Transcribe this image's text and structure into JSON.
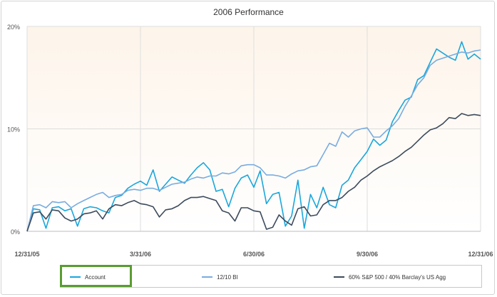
{
  "chart_data": {
    "type": "line",
    "title": "2006 Performance",
    "xlabel": "",
    "ylabel": "",
    "x_ticks": [
      "12/31/05",
      "3/31/06",
      "6/30/06",
      "9/30/06",
      "12/31/06"
    ],
    "y_ticks": [
      "0%",
      "10%",
      "20%"
    ],
    "ylim": [
      0,
      20
    ],
    "grid": true,
    "legend_position": "bottom",
    "series": [
      {
        "name": "Account",
        "color": "#1aa7dc",
        "values": [
          0.0,
          2.2,
          2.1,
          0.3,
          2.3,
          2.4,
          2.0,
          2.2,
          0.5,
          2.2,
          2.4,
          2.3,
          2.0,
          1.8,
          3.3,
          3.5,
          4.2,
          4.6,
          4.9,
          4.5,
          6.0,
          3.9,
          4.6,
          5.3,
          5.0,
          4.7,
          5.5,
          6.2,
          6.7,
          6.0,
          3.9,
          4.1,
          2.4,
          4.2,
          5.2,
          5.5,
          4.3,
          5.9,
          2.7,
          3.6,
          3.8,
          0.5,
          1.5,
          5.0,
          0.3,
          3.6,
          2.3,
          4.3,
          2.6,
          2.3,
          4.5,
          5.0,
          6.2,
          7.0,
          7.8,
          9.0,
          8.4,
          8.9,
          10.7,
          11.8,
          12.8,
          13.1,
          14.8,
          15.2,
          16.5,
          17.8,
          17.4,
          17.0,
          16.7,
          18.5,
          16.8,
          17.3,
          16.8
        ]
      },
      {
        "name": "12/10 BI",
        "color": "#79ace0",
        "values": [
          0.0,
          2.5,
          2.6,
          2.3,
          2.9,
          2.8,
          2.9,
          2.3,
          2.7,
          3.0,
          3.3,
          3.6,
          3.8,
          3.3,
          3.5,
          3.6,
          4.0,
          4.1,
          4.0,
          4.2,
          4.2,
          4.0,
          4.3,
          4.6,
          4.7,
          4.8,
          5.1,
          5.3,
          5.2,
          5.4,
          5.4,
          5.7,
          5.6,
          5.8,
          6.4,
          6.5,
          6.5,
          6.2,
          5.5,
          5.5,
          5.4,
          5.2,
          5.6,
          5.9,
          6.0,
          6.3,
          6.4,
          7.5,
          8.6,
          8.3,
          9.7,
          9.2,
          9.8,
          10.0,
          10.1,
          9.2,
          9.2,
          9.8,
          10.3,
          11.0,
          12.2,
          13.2,
          14.3,
          15.0,
          16.2,
          16.7,
          16.9,
          17.1,
          17.3,
          17.5,
          17.4,
          17.6,
          17.7
        ]
      },
      {
        "name": "60% S&P 500 / 40% Barclay's US Agg",
        "color": "#3d4b5c",
        "values": [
          0.0,
          1.8,
          1.9,
          1.2,
          2.1,
          2.0,
          1.3,
          1.0,
          1.2,
          1.7,
          1.8,
          2.0,
          1.2,
          2.2,
          2.6,
          2.5,
          2.8,
          3.0,
          2.7,
          2.6,
          2.4,
          1.4,
          2.1,
          2.2,
          2.5,
          3.0,
          3.3,
          3.3,
          3.4,
          3.2,
          3.0,
          2.0,
          1.8,
          1.0,
          2.3,
          2.3,
          2.0,
          1.9,
          0.2,
          0.4,
          1.6,
          1.0,
          0.6,
          2.2,
          2.4,
          1.5,
          1.6,
          2.6,
          3.0,
          3.0,
          3.3,
          3.9,
          4.3,
          5.0,
          5.4,
          5.9,
          6.3,
          6.6,
          6.9,
          7.3,
          7.8,
          8.2,
          8.8,
          9.4,
          9.9,
          10.1,
          10.5,
          11.1,
          11.0,
          11.5,
          11.3,
          11.4,
          11.3
        ]
      }
    ]
  }
}
